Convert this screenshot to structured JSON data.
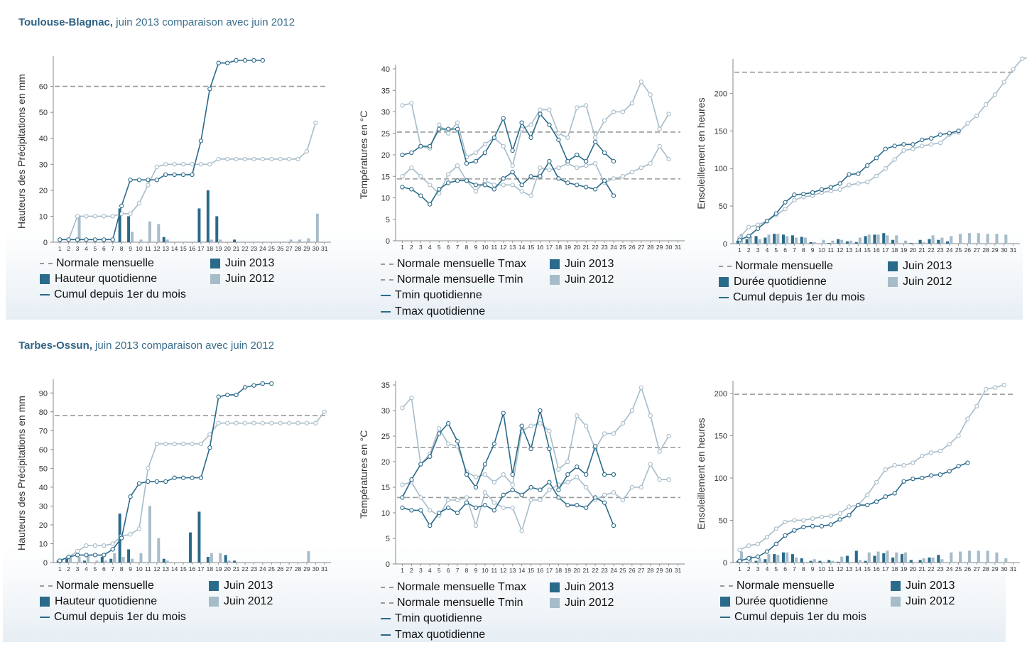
{
  "colors": {
    "y2013": "#2a6a8a",
    "y2012": "#a7bcc9",
    "normal": "#9a9a9a"
  },
  "stations": [
    {
      "title_bold": "Toulouse-Blagnac,",
      "title_rest": " juin 2013 comparaison avec juin 2012",
      "charts": [
        {
          "type": "bar+line",
          "ylabel": "Hauteurs des Précipitations en mm",
          "ylim": [
            0,
            70
          ],
          "yticks": [
            0,
            10,
            20,
            30,
            40,
            50,
            60
          ],
          "normal": [
            60
          ],
          "bars2013": [
            0,
            0,
            0,
            0,
            0,
            0,
            0,
            13,
            10,
            0,
            0,
            0,
            2,
            0,
            0,
            0,
            13,
            20,
            10,
            0,
            1,
            0,
            0,
            0,
            0,
            0,
            0,
            0,
            0,
            0
          ],
          "bars2012": [
            0,
            0,
            10,
            0,
            0,
            0,
            0,
            0,
            4,
            1,
            8,
            7,
            1,
            0,
            0,
            0,
            0,
            1,
            1,
            0,
            0,
            0,
            0,
            0,
            0,
            0,
            1,
            1,
            1.5,
            11
          ],
          "lines": [
            {
              "year": "2013",
              "values": [
                1,
                1,
                1,
                1,
                1,
                1,
                1,
                14,
                24,
                24,
                24,
                24,
                26,
                26,
                26,
                26,
                39,
                59,
                69,
                69,
                70,
                70,
                70,
                70
              ]
            },
            {
              "year": "2012",
              "values": [
                1,
                1,
                10,
                10,
                10,
                10,
                10,
                11,
                11,
                15,
                22,
                29,
                30,
                30,
                30,
                30,
                30,
                30,
                32,
                32,
                32,
                32,
                32,
                32,
                32,
                32,
                32,
                32,
                35,
                46
              ]
            }
          ],
          "legend": [
            "Normale mensuelle",
            "Juin 2013",
            "Hauteur quotidienne",
            "Juin 2012",
            "Cumul depuis 1er du mois"
          ]
        },
        {
          "type": "line",
          "ylabel": "Températures en °C",
          "ylim": [
            0,
            40
          ],
          "yticks": [
            0,
            5,
            10,
            15,
            20,
            25,
            30,
            35,
            40
          ],
          "normal": [
            25.3,
            14.4
          ],
          "bars2013": [],
          "bars2012": [],
          "lines": [
            {
              "year": "2013",
              "label": "Tmax",
              "values": [
                20,
                20.5,
                22,
                22,
                26,
                26,
                26,
                18,
                18.5,
                20.5,
                24,
                28.5,
                21,
                27.5,
                24,
                29.5,
                27,
                23.5,
                18.5,
                20,
                18.5,
                23,
                20.5,
                18.5
              ]
            },
            {
              "year": "2013",
              "label": "Tmin",
              "values": [
                12.5,
                12,
                10.5,
                8.5,
                12,
                13.5,
                14,
                14,
                13,
                13,
                12,
                14.5,
                16,
                13,
                15,
                15,
                18.5,
                14.5,
                13.5,
                13,
                12.5,
                12,
                14,
                10.5
              ]
            },
            {
              "year": "2012",
              "label": "Tmax",
              "values": [
                31.5,
                32,
                22,
                21.5,
                27,
                25,
                27.5,
                19.5,
                20.5,
                22.5,
                24,
                22,
                17.5,
                26,
                27,
                30.5,
                30.5,
                25,
                24,
                31,
                31.5,
                24,
                28,
                30,
                30,
                32,
                37,
                34,
                26,
                29.5
              ]
            },
            {
              "year": "2012",
              "label": "Tmin",
              "values": [
                15,
                17,
                15,
                13,
                11,
                15.5,
                17.5,
                14,
                11.5,
                14,
                13,
                13,
                13,
                11.5,
                10.5,
                17,
                16.5,
                17,
                18,
                17,
                17.5,
                18,
                13.5,
                14.5,
                15,
                16,
                17,
                18,
                22,
                19
              ]
            }
          ],
          "legend": [
            "Normale mensuelle Tmax",
            "Juin 2013",
            "Normale mensuelle Tmin",
            "Juin 2012",
            "Tmin quotidienne",
            "Tmax quotidienne"
          ]
        },
        {
          "type": "bar+line",
          "ylabel": "Ensoleillement en heures",
          "ylim": [
            0,
            240
          ],
          "yticks": [
            0,
            50,
            100,
            150,
            200
          ],
          "normal": [
            228
          ],
          "bars2013": [
            4,
            6,
            10,
            8,
            13,
            12,
            11,
            9,
            2,
            0,
            1,
            6,
            3,
            2,
            10,
            12,
            14,
            5,
            0,
            1,
            5,
            6,
            5,
            3
          ],
          "bars2012": [
            13,
            10,
            6,
            12,
            13,
            10,
            8,
            8,
            2,
            5,
            4,
            5,
            4,
            8,
            12,
            12,
            11,
            11,
            4,
            1,
            2,
            11,
            8,
            10,
            13,
            14,
            14,
            13,
            13,
            12
          ],
          "lines": [
            {
              "year": "2013",
              "values": [
                5,
                10,
                20,
                30,
                40,
                55,
                65,
                66,
                68,
                72,
                75,
                80,
                92,
                93,
                104,
                114,
                126,
                130,
                132,
                132,
                138,
                140,
                145,
                147,
                150
              ]
            },
            {
              "year": "2012",
              "values": [
                8,
                22,
                25,
                30,
                38,
                46,
                58,
                62,
                64,
                68,
                70,
                72,
                78,
                80,
                82,
                90,
                100,
                112,
                124,
                126,
                130,
                132,
                134,
                145,
                148,
                160,
                170,
                185,
                198,
                215,
                232,
                246,
                248
              ]
            }
          ],
          "legend": [
            "Normale mensuelle",
            "Juin 2013",
            "Durée quotidienne",
            "Juin 2012",
            "Cumul depuis 1er du mois"
          ]
        }
      ]
    },
    {
      "title_bold": "Tarbes-Ossun,",
      "title_rest": " juin 2013 comparaison avec juin 2012",
      "charts": [
        {
          "type": "bar+line",
          "ylabel": "Hauteurs des Précipitations en mm",
          "ylim": [
            0,
            95
          ],
          "yticks": [
            0,
            10,
            20,
            30,
            40,
            50,
            60,
            70,
            80,
            90
          ],
          "normal": [
            78
          ],
          "bars2013": [
            1,
            2,
            0,
            1,
            0,
            3,
            2,
            26,
            7,
            0,
            0,
            0,
            2,
            0,
            0,
            16,
            27,
            3,
            0,
            4,
            1,
            0,
            0,
            0,
            0,
            0,
            0,
            0,
            0,
            0
          ],
          "bars2012": [
            2,
            3,
            3,
            4,
            1,
            1,
            5,
            3,
            2,
            5,
            30,
            13,
            1,
            0,
            0,
            0,
            0,
            5,
            5,
            1,
            0,
            0,
            0,
            0,
            0,
            0,
            0,
            0,
            6,
            0
          ],
          "lines": [
            {
              "year": "2013",
              "values": [
                1,
                3,
                4,
                4,
                4,
                4,
                7,
                13,
                35,
                42,
                43,
                43,
                43,
                45,
                45,
                45,
                45,
                61,
                88,
                89,
                89,
                93,
                94,
                95,
                95
              ]
            },
            {
              "year": "2012",
              "values": [
                1,
                3,
                6,
                9,
                9,
                9,
                10,
                14,
                15,
                18,
                50,
                63,
                63,
                63,
                63,
                63,
                63,
                68,
                74,
                74,
                74,
                74,
                74,
                74,
                74,
                74,
                74,
                74,
                74,
                74,
                80
              ]
            }
          ],
          "legend": [
            "Normale mensuelle",
            "Juin 2013",
            "Hauteur quotidienne",
            "Juin 2012",
            "Cumul depuis 1er du mois"
          ]
        },
        {
          "type": "line",
          "ylabel": "Températures en °C",
          "ylim": [
            0,
            35
          ],
          "yticks": [
            0,
            5,
            10,
            15,
            20,
            25,
            30,
            35
          ],
          "normal": [
            22.8,
            13
          ],
          "bars2013": [],
          "bars2012": [],
          "lines": [
            {
              "year": "2013",
              "label": "Tmax",
              "values": [
                13,
                16.5,
                19.5,
                21,
                25.5,
                27.5,
                24,
                17.5,
                15,
                19.5,
                23.5,
                29.5,
                17.5,
                27,
                22.5,
                30,
                22.5,
                14.5,
                17.5,
                19,
                17.5,
                23,
                17.5,
                17.5
              ]
            },
            {
              "year": "2013",
              "label": "Tmin",
              "values": [
                11,
                10.5,
                10.5,
                7.5,
                10,
                11,
                10,
                12,
                11,
                11.5,
                10.5,
                13.5,
                14.5,
                13.5,
                15,
                14.5,
                16,
                13,
                11.5,
                11.5,
                11,
                13,
                12,
                7.5
              ]
            },
            {
              "year": "2012",
              "label": "Tmax",
              "values": [
                30.5,
                32.5,
                19.5,
                21.5,
                26.5,
                23.5,
                23,
                18,
                17,
                17.5,
                16,
                17.5,
                15.5,
                26,
                27,
                27.5,
                26,
                18.5,
                20,
                29,
                27,
                22.5,
                25.5,
                25.5,
                27.5,
                30,
                34.5,
                29,
                22,
                25
              ]
            },
            {
              "year": "2012",
              "label": "Tmin",
              "values": [
                15.5,
                16,
                13,
                10.5,
                9.5,
                12.5,
                12.5,
                13,
                7.5,
                14,
                12,
                11,
                11,
                6.5,
                12.5,
                12.5,
                14.5,
                15.5,
                16,
                17,
                15,
                12.5,
                13.5,
                14,
                12.5,
                15,
                15,
                19.5,
                16.5,
                16.5
              ]
            }
          ],
          "legend": [
            "Normale mensuelle Tmax",
            "Juin 2013",
            "Normale mensuelle Tmin",
            "Juin 2012",
            "Tmin quotidienne",
            "Tmax quotidienne"
          ]
        },
        {
          "type": "bar+line",
          "ylabel": "Ensoleillement en heures",
          "ylim": [
            0,
            210
          ],
          "yticks": [
            0,
            50,
            100,
            150,
            200
          ],
          "normal": [
            199
          ],
          "bars2013": [
            2,
            1,
            2,
            4,
            10,
            12,
            10,
            5,
            2,
            2,
            3,
            1,
            8,
            14,
            2,
            8,
            11,
            6,
            10,
            3,
            3,
            6,
            9,
            0
          ],
          "bars2012": [
            13,
            8,
            5,
            10,
            9,
            12,
            6,
            0,
            4,
            1,
            2,
            7,
            0,
            3,
            12,
            13,
            14,
            12,
            12,
            0,
            5,
            6,
            4,
            12,
            13,
            14,
            14,
            14,
            12,
            5
          ],
          "lines": [
            {
              "year": "2013",
              "values": [
                2,
                5,
                7,
                13,
                22,
                32,
                38,
                42,
                43,
                43,
                45,
                51,
                56,
                68,
                68,
                72,
                78,
                82,
                96,
                99,
                100,
                103,
                104,
                108,
                114,
                118
              ]
            },
            {
              "year": "2012",
              "values": [
                15,
                20,
                22,
                30,
                40,
                48,
                50,
                50,
                52,
                54,
                55,
                58,
                66,
                68,
                80,
                95,
                110,
                115,
                115,
                118,
                126,
                130,
                132,
                140,
                150,
                170,
                185,
                205,
                207,
                210
              ]
            }
          ],
          "legend": [
            "Normale mensuelle",
            "Juin 2013",
            "Durée quotidienne",
            "Juin 2012",
            "Cumul depuis 1er du mois"
          ]
        }
      ]
    }
  ]
}
